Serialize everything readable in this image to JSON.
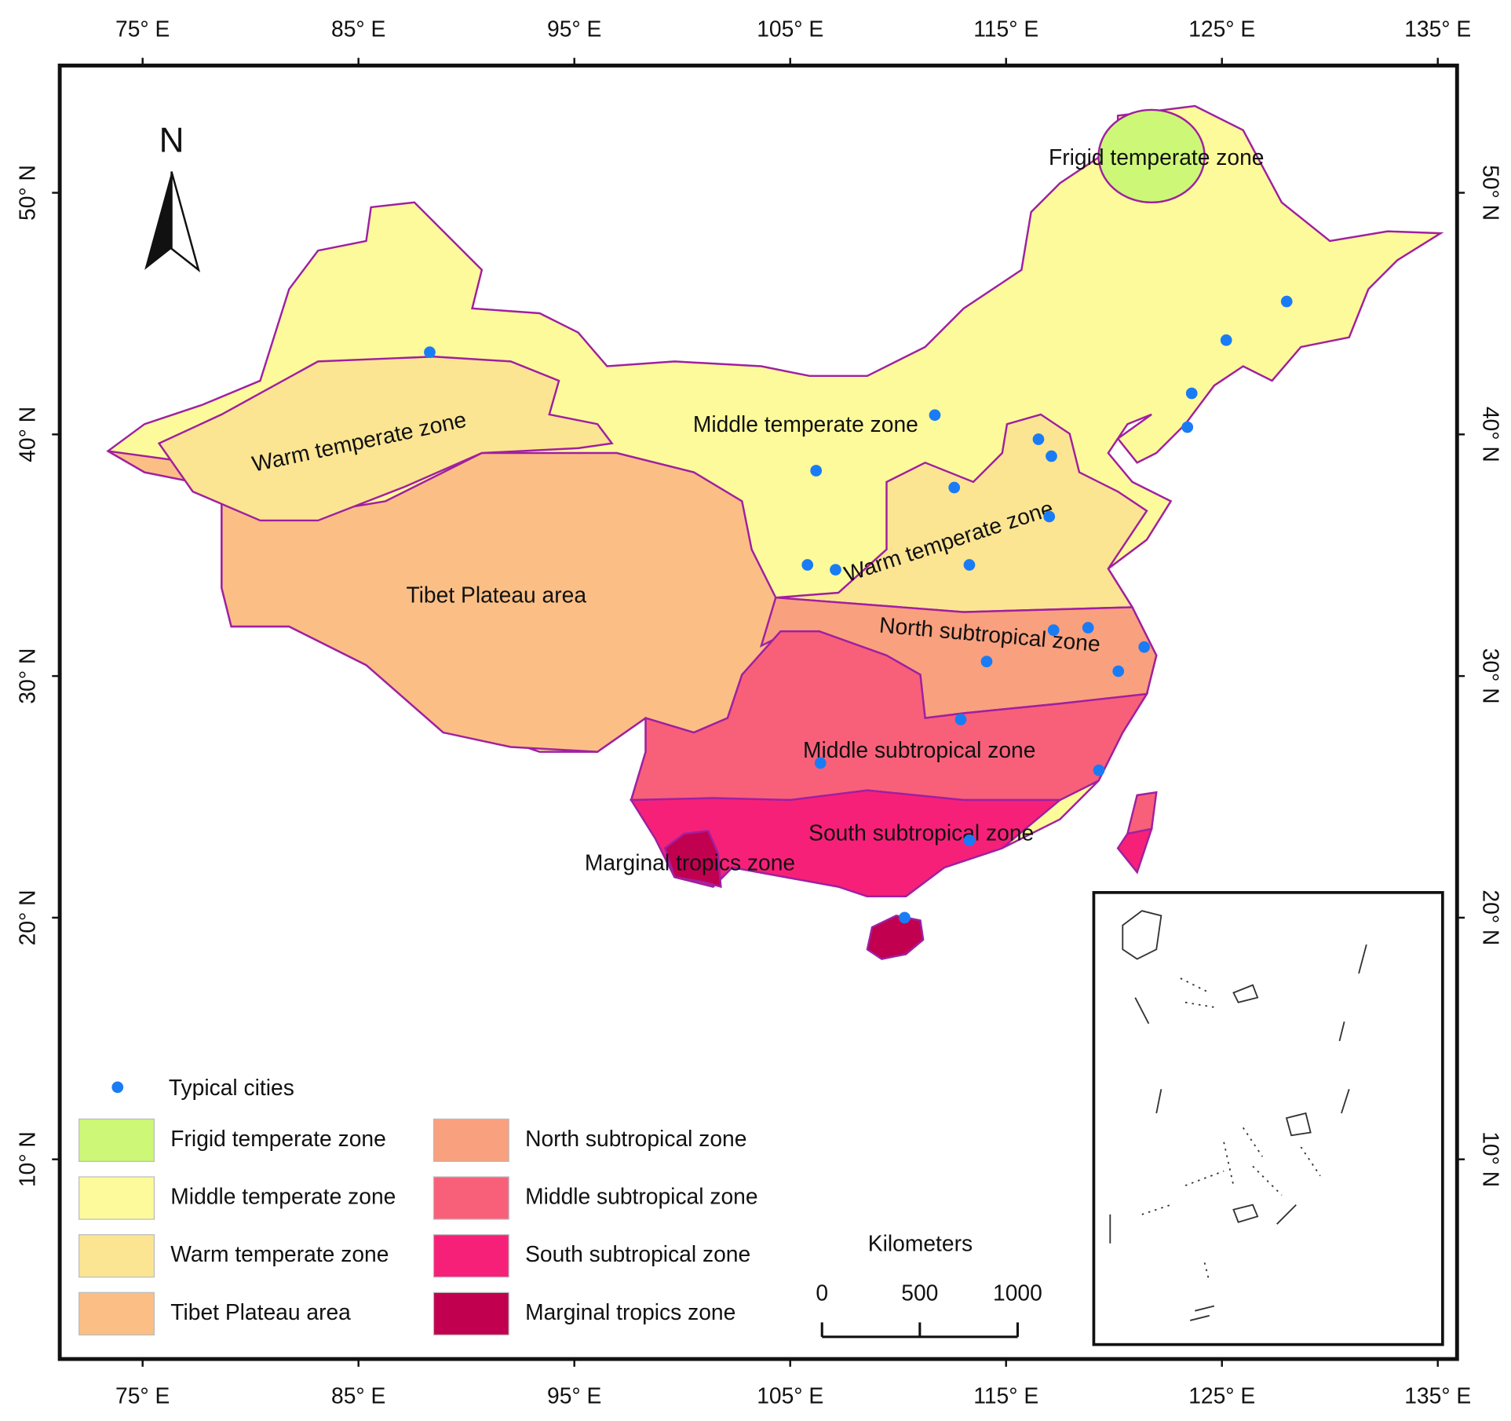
{
  "lon_ticks": [
    {
      "value": 75,
      "label": "75° E"
    },
    {
      "value": 85,
      "label": "85° E"
    },
    {
      "value": 95,
      "label": "95° E"
    },
    {
      "value": 105,
      "label": "105° E"
    },
    {
      "value": 115,
      "label": "115° E"
    },
    {
      "value": 125,
      "label": "125° E"
    },
    {
      "value": 135,
      "label": "135° E"
    }
  ],
  "lat_ticks": [
    {
      "value": 50,
      "label": "50° N"
    },
    {
      "value": 40,
      "label": "40° N"
    },
    {
      "value": 30,
      "label": "30° N"
    },
    {
      "value": 20,
      "label": "20° N"
    },
    {
      "value": 10,
      "label": "10° N"
    }
  ],
  "north": "N",
  "zones": [
    {
      "name": "Frigid temperate zone",
      "color": "#cdf777"
    },
    {
      "name": "Middle temperate zone",
      "color": "#fdfa9b"
    },
    {
      "name": "Warm temperate zone",
      "color": "#fce592"
    },
    {
      "name": "Tibet Plateau area",
      "color": "#fbbf86"
    },
    {
      "name": "North subtropical zone",
      "color": "#f9a07e"
    },
    {
      "name": "Middle subtropical zone",
      "color": "#f8607a"
    },
    {
      "name": "South subtropical zone",
      "color": "#f72079"
    },
    {
      "name": "Marginal tropics zone",
      "color": "#c10050"
    }
  ],
  "cities": {
    "name": "Typical cities",
    "color": "#1a7cf5",
    "points": [
      [
        88.3,
        43.4
      ],
      [
        128.0,
        45.5
      ],
      [
        125.2,
        43.9
      ],
      [
        123.6,
        41.7
      ],
      [
        123.4,
        40.3
      ],
      [
        111.7,
        40.8
      ],
      [
        116.5,
        39.8
      ],
      [
        117.1,
        39.1
      ],
      [
        106.2,
        38.5
      ],
      [
        112.6,
        37.8
      ],
      [
        117.0,
        36.6
      ],
      [
        105.8,
        34.6
      ],
      [
        107.1,
        34.4
      ],
      [
        113.3,
        34.6
      ],
      [
        117.2,
        31.9
      ],
      [
        118.8,
        32.0
      ],
      [
        121.4,
        31.2
      ],
      [
        114.1,
        30.6
      ],
      [
        120.2,
        30.2
      ],
      [
        112.9,
        28.2
      ],
      [
        106.4,
        26.4
      ],
      [
        119.3,
        26.1
      ],
      [
        113.3,
        23.2
      ],
      [
        110.3,
        20.0
      ]
    ]
  },
  "scale_bar": {
    "title": "Kilometers",
    "ticks": [
      0,
      500,
      1000
    ]
  }
}
